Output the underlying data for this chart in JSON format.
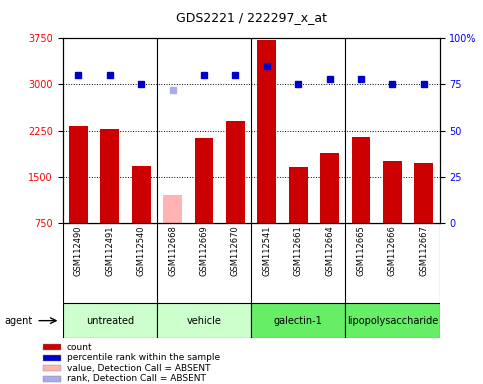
{
  "title": "GDS2221 / 222297_x_at",
  "samples": [
    "GSM112490",
    "GSM112491",
    "GSM112540",
    "GSM112668",
    "GSM112669",
    "GSM112670",
    "GSM112541",
    "GSM112661",
    "GSM112664",
    "GSM112665",
    "GSM112666",
    "GSM112667"
  ],
  "counts": [
    2320,
    2270,
    1680,
    null,
    2130,
    2400,
    3720,
    1650,
    1880,
    2150,
    1750,
    1720
  ],
  "absent_count": [
    null,
    null,
    null,
    1200,
    null,
    null,
    null,
    null,
    null,
    null,
    null,
    null
  ],
  "percentile_ranks": [
    80,
    80,
    75,
    null,
    80,
    80,
    85,
    75,
    78,
    78,
    75,
    75
  ],
  "absent_rank": [
    null,
    null,
    null,
    72,
    null,
    null,
    null,
    null,
    null,
    null,
    null,
    null
  ],
  "group_labels": [
    "untreated",
    "vehicle",
    "galectin-1",
    "lipopolysaccharide"
  ],
  "group_starts": [
    0,
    3,
    6,
    9
  ],
  "group_ends": [
    3,
    6,
    9,
    12
  ],
  "group_colors": [
    "#ccffcc",
    "#ccffcc",
    "#66ee66",
    "#66ee66"
  ],
  "group_boundaries": [
    3,
    6,
    9
  ],
  "ylim_left": [
    750,
    3750
  ],
  "ylim_right": [
    0,
    100
  ],
  "yticks_left": [
    750,
    1500,
    2250,
    3000,
    3750
  ],
  "yticks_right": [
    0,
    25,
    50,
    75,
    100
  ],
  "ytick_labels_right": [
    "0",
    "25",
    "50",
    "75",
    "100%"
  ],
  "hlines": [
    1500,
    2250,
    3000
  ],
  "bar_color": "#cc0000",
  "absent_bar_color": "#ffb3b3",
  "rank_color": "#0000cc",
  "absent_rank_color": "#aaaaee",
  "sample_bg_color": "#c8c8c8",
  "agent_label": "agent",
  "legend_items": [
    {
      "label": "count",
      "color": "#cc0000"
    },
    {
      "label": "percentile rank within the sample",
      "color": "#0000cc"
    },
    {
      "label": "value, Detection Call = ABSENT",
      "color": "#ffb3b3"
    },
    {
      "label": "rank, Detection Call = ABSENT",
      "color": "#aaaaee"
    }
  ]
}
